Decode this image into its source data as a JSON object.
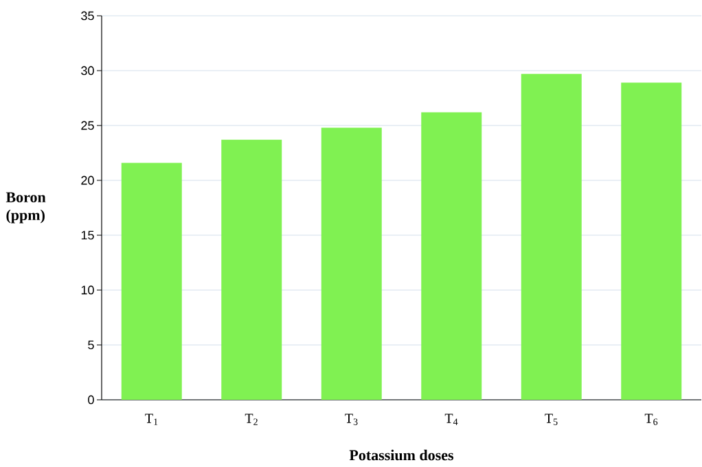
{
  "chart_data": {
    "type": "bar",
    "xlabel": "Potassium doses",
    "ylabel": "Boron (ppm)",
    "categories": [
      "T$_{1}$",
      "T$_{2}$",
      "T$_{3}$",
      "T$_{4}$",
      "T$_{5}$",
      "T$_{6}$"
    ],
    "values": [
      21.6,
      23.7,
      24.8,
      26.2,
      29.7,
      28.9
    ],
    "color": "#80f152",
    "ylim": [
      0,
      35
    ],
    "yticks": [
      0,
      5,
      10,
      15,
      20,
      25,
      30,
      35
    ],
    "grid": "y"
  }
}
